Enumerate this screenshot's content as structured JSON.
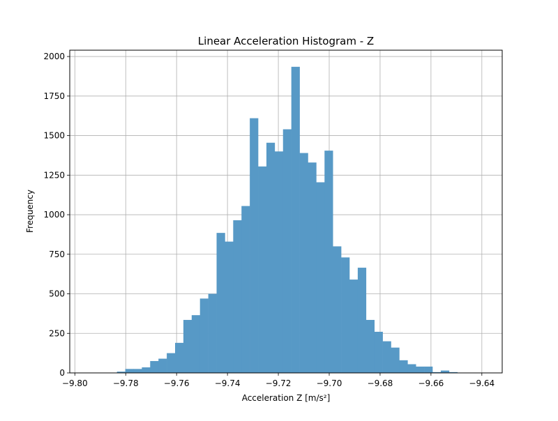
{
  "chart_data": {
    "type": "bar",
    "title": "Linear Acceleration Histogram - Z",
    "xlabel": "Acceleration Z [m/s²]",
    "ylabel": "Frequency",
    "xlim": [
      -9.802,
      -9.632
    ],
    "ylim": [
      0,
      2040
    ],
    "xticks": [
      "−9.80",
      "−9.78",
      "−9.76",
      "−9.74",
      "−9.72",
      "−9.70",
      "−9.68",
      "−9.66",
      "−9.64"
    ],
    "xtick_values": [
      -9.8,
      -9.78,
      -9.76,
      -9.74,
      -9.72,
      -9.7,
      -9.68,
      -9.66,
      -9.64
    ],
    "yticks": [
      "0",
      "250",
      "500",
      "750",
      "1000",
      "1250",
      "1500",
      "1750",
      "2000"
    ],
    "ytick_values": [
      0,
      250,
      500,
      750,
      1000,
      1250,
      1500,
      1750,
      2000
    ],
    "grid": true,
    "bar_color": "#5799c6",
    "bin_start": -9.7965,
    "bin_width": 0.003264,
    "values": [
      0,
      0,
      1,
      2,
      8,
      25,
      25,
      35,
      75,
      90,
      125,
      190,
      335,
      365,
      470,
      500,
      885,
      830,
      965,
      1055,
      1610,
      1305,
      1455,
      1400,
      1540,
      1935,
      1390,
      1330,
      1205,
      1405,
      800,
      730,
      590,
      665,
      335,
      260,
      200,
      160,
      80,
      55,
      40,
      40,
      5,
      15,
      5,
      2,
      1,
      0,
      0,
      0
    ]
  }
}
